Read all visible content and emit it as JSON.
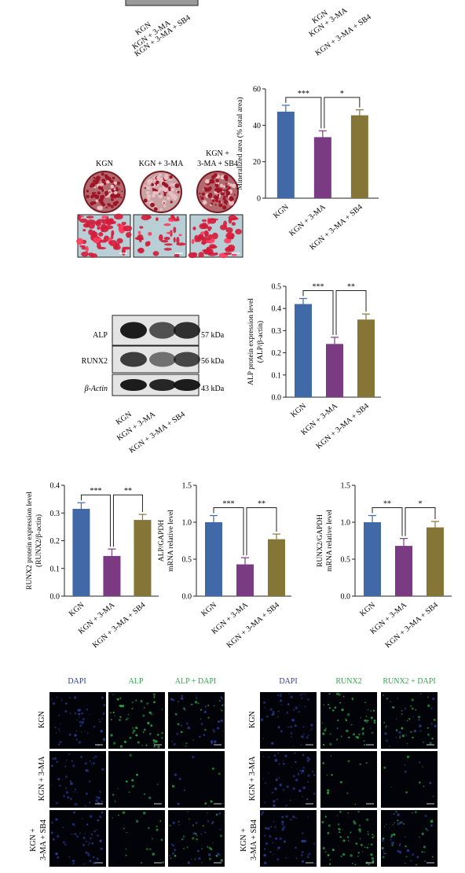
{
  "groups": [
    "KGN",
    "KGN + 3-MA",
    "KGN + 3-MA + SB4"
  ],
  "colors": {
    "kgn": "#4169a8",
    "ma": "#7a3b82",
    "sb4": "#857638",
    "stain": "#c0203a",
    "fluor_green": "#2ea84a",
    "fluor_blue": "#2d3e9a"
  },
  "staining": {
    "labels": [
      "KGN",
      "KGN + 3-MA",
      "KGN +",
      "3-MA + SB4"
    ]
  },
  "western": {
    "bands": [
      "ALP",
      "RUNX2",
      "β-Actin"
    ],
    "sizes": [
      "57 kDa",
      "56 kDa",
      "43 kDa"
    ]
  },
  "if_panel": {
    "left_headers": [
      "DAPI",
      "ALP",
      "ALP + DAPI"
    ],
    "right_headers": [
      "DAPI",
      "RUNX2",
      "RUNX2 + DAPI"
    ],
    "row_labels": [
      "KGN",
      "KGN + 3-MA",
      "KGN +",
      "3-MA + SB4"
    ]
  },
  "chart_data": [
    {
      "type": "bar",
      "categories": [
        "KGN",
        "KGN + 3-MA",
        "KGN + 3-MA + SB4"
      ],
      "values": [
        47.5,
        33.5,
        45.5
      ],
      "errors": [
        3.5,
        3.5,
        3.0
      ],
      "ylabel": "Mineralized area (% total area)",
      "ylim": [
        0,
        60
      ],
      "yticks": [
        0,
        20,
        40,
        60
      ],
      "significance": [
        "***",
        "*"
      ]
    },
    {
      "type": "bar",
      "categories": [
        "KGN",
        "KGN + 3-MA",
        "KGN + 3-MA + SB4"
      ],
      "values": [
        0.42,
        0.24,
        0.35
      ],
      "errors": [
        0.025,
        0.03,
        0.025
      ],
      "ylabel": "ALP protein expression level (ALP/β-actin)",
      "ylabel_lines": [
        "ALP protein expression level",
        "(ALP/β-actin)"
      ],
      "ylim": [
        0,
        0.5
      ],
      "yticks": [
        "0.0",
        "0.1",
        "0.2",
        "0.3",
        "0.4",
        "0.5"
      ],
      "significance": [
        "***",
        "**"
      ]
    },
    {
      "type": "bar",
      "categories": [
        "KGN",
        "KGN + 3-MA",
        "KGN + 3-MA + SB4"
      ],
      "values": [
        0.315,
        0.145,
        0.275
      ],
      "errors": [
        0.022,
        0.025,
        0.02
      ],
      "ylabel": "RUNX2 protein expression level (RUNX2/β-actin)",
      "ylabel_lines": [
        "RUNX2 protein expression level",
        "(RUNX2/β-actin)"
      ],
      "ylim": [
        0,
        0.4
      ],
      "yticks": [
        "0.0",
        "0.1",
        "0.2",
        "0.3",
        "0.4"
      ],
      "significance": [
        "***",
        "**"
      ]
    },
    {
      "type": "bar",
      "categories": [
        "KGN",
        "KGN + 3-MA",
        "KGN + 3-MA + SB4"
      ],
      "values": [
        1.0,
        0.43,
        0.77
      ],
      "errors": [
        0.09,
        0.09,
        0.07
      ],
      "ylabel": "ALP/GAPDH mRNA relative level",
      "ylabel_lines": [
        "ALP/GAPDH",
        "mRNA relative level"
      ],
      "ylim": [
        0,
        1.5
      ],
      "yticks": [
        "0.0",
        "0.5",
        "1.0",
        "1.5"
      ],
      "significance": [
        "***",
        "**"
      ]
    },
    {
      "type": "bar",
      "categories": [
        "KGN",
        "KGN + 3-MA",
        "KGN + 3-MA + SB4"
      ],
      "values": [
        1.0,
        0.68,
        0.93
      ],
      "errors": [
        0.09,
        0.1,
        0.08
      ],
      "ylabel": "RUNX2/GAPDH mRNA relative level",
      "ylabel_lines": [
        "RUNX2/GAPDH",
        "mRNA relative level"
      ],
      "ylim": [
        0,
        1.5
      ],
      "yticks": [
        "0.0",
        "0.5",
        "1.0",
        "1.5"
      ],
      "significance": [
        "**",
        "*"
      ]
    }
  ]
}
